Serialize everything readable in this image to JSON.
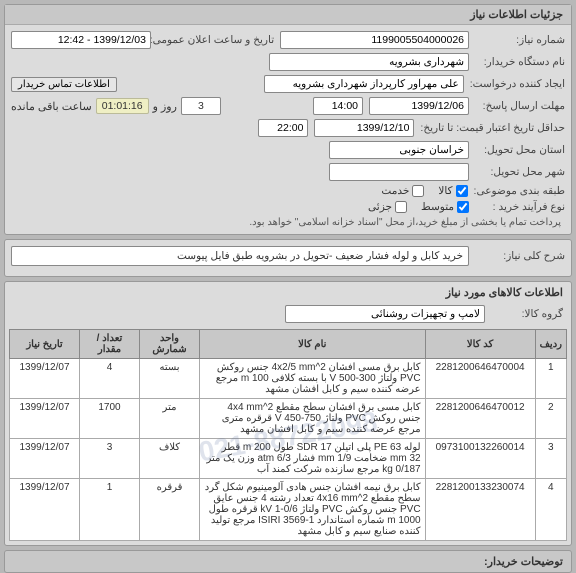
{
  "panel1": {
    "title": "جزئیات اطلاعات نیاز",
    "need_no_label": "شماره نیاز:",
    "need_no": "1199005504000026",
    "announce_label": "تاریخ و ساعت اعلان عمومی:",
    "announce": "1399/12/03 - 12:42",
    "buyer_org_label": "نام دستگاه خریدار:",
    "buyer_org": "شهرداری بشرویه",
    "creator_label": "ایجاد کننده درخواست:",
    "creator": "علی مهرآور کارپرداز شهرداری بشرویه",
    "buyer_info_btn": "اطلاعات تماس خریدار",
    "deadline_label": "مهلت ارسال پاسخ:",
    "deadline_date": "1399/12/06",
    "deadline_time": "14:00",
    "days_left_prefix": "",
    "days_left": "3",
    "days_text": "روز و",
    "timer": "01:01:16",
    "remaining_text": "ساعت باقی مانده",
    "validity_label": "حداقل تاریخ اعتبار قیمت: تا تاریخ:",
    "validity_date": "1399/12/10",
    "validity_time": "22:00",
    "province_label": "استان محل تحویل:",
    "province": "خراسان جنوبی",
    "city_label": "شهر محل تحویل:",
    "city": "",
    "category_label": "طبقه بندی موضوعی:",
    "cat_goods": "کالا",
    "cat_service": "خدمت",
    "process_label": "نوع فرآیند خرید :",
    "proc_mid": "متوسط",
    "proc_low": "جزئی",
    "note": "پرداخت تمام یا بخشی از مبلغ خرید،از محل \"اسناد خزانه اسلامی\" خواهد بود."
  },
  "panel2": {
    "desc_label": "شرح کلی نیاز:",
    "desc": "خرید کابل و لوله فشار ضعیف -تحویل در بشرویه طبق فایل پیوست"
  },
  "items_section": {
    "title": "اطلاعات کالاهای مورد نیاز",
    "group_label": "گروه کالا:",
    "group_value": "لامپ و تجهیزات روشنائی",
    "columns": [
      "ردیف",
      "کد کالا",
      "نام کالا",
      "واحد شمارش",
      "تعداد / مقدار",
      "تاریخ نیاز"
    ],
    "rows": [
      {
        "n": "1",
        "code": "2281200646470004",
        "name": "کابل برق مسی افشان 4x2/5 mm^2 جنس روکش PVC ولتاژ V 500-300 با بسته کلافی m 100 مرجع عرضه کننده سیم و کابل افشان مشهد",
        "unit": "بسته",
        "qty": "4",
        "date": "1399/12/07"
      },
      {
        "n": "2",
        "code": "2281200646470012",
        "name": "کابل مسی برق افشان سطح مقطع 4x4 mm^2 جنس روکش PVC ولتاژ 750-450 V قرقره متری مرجع عرضه کننده سیم و کابل افشان مشهد",
        "unit": "متر",
        "qty": "1700",
        "date": "1399/12/07"
      },
      {
        "n": "3",
        "code": "0973100132260014",
        "name": "لوله PE 63 پلی اتیلن SDR 17 طول m 200 قطر mm 32 ضخامت mm 1/9 فشار atm 6/3 وزن یک متر kg 0/187 مرجع سازنده شرکت کمند آب",
        "unit": "کلاف",
        "qty": "3",
        "date": "1399/12/07"
      },
      {
        "n": "4",
        "code": "2281200133230074",
        "name": "کابل برق نیمه افشان جنس هادی آلومینیوم شکل گرد سطح مقطع 4x16 mm^2 تعداد رشته 4 جنس عایق PVC جنس روکش PVC ولتاژ kV 1-0/6 قرقره طول m 1000 شماره استاندارد ISIRI 3569-1 مرجع تولید کننده صنایع سیم و کابل مشهد",
        "unit": "قرقره",
        "qty": "1",
        "date": "1399/12/07"
      }
    ],
    "watermark": "021-88722098"
  },
  "bottom": {
    "title": "توضیحات خریدار:"
  },
  "colors": {
    "panel_bg": "#dcdcdc",
    "header_bg": "#c8c8c8",
    "body_bg": "#b8b8b8",
    "input_bg": "#ffffff",
    "border": "#888888",
    "timer_bg": "#efefc4"
  }
}
